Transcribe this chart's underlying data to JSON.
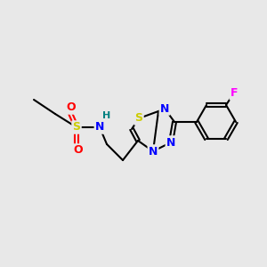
{
  "bg_color": "#e8e8e8",
  "bond_color": "#000000",
  "atom_colors": {
    "S_sulfo": "#cccc00",
    "O": "#ff0000",
    "N": "#0000ff",
    "H": "#008080",
    "F": "#ff00ff",
    "S_thia": "#cccc00",
    "C": "#000000"
  },
  "font_size": 8,
  "bond_width": 1.5
}
